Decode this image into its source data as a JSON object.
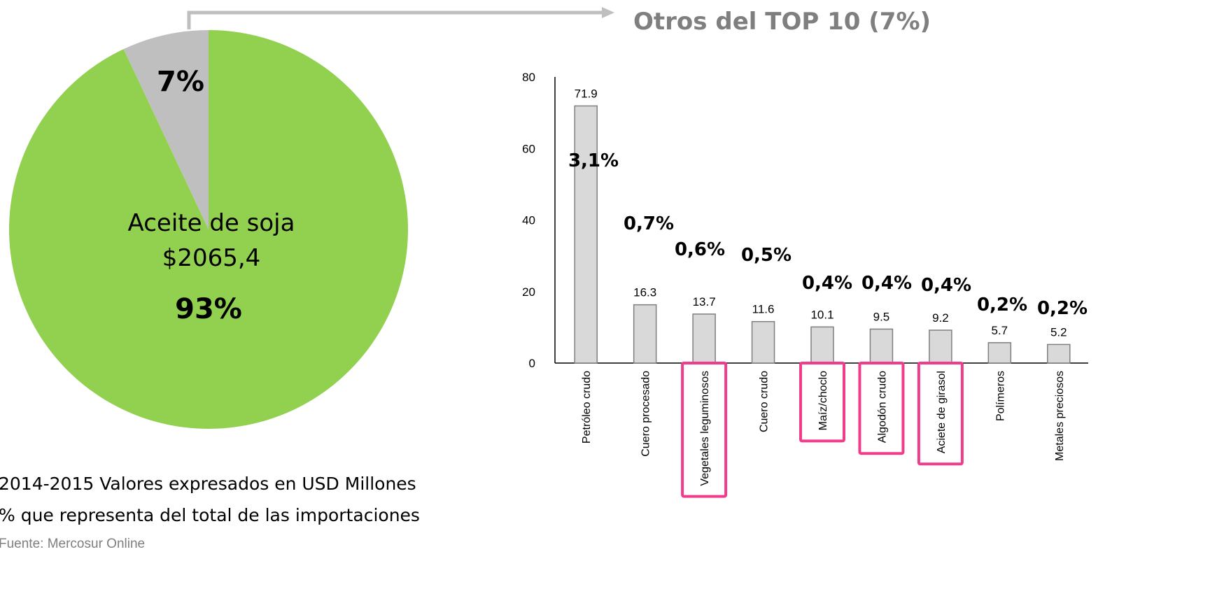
{
  "chart_data": [
    {
      "type": "pie",
      "labels": [
        "Aceite de soja",
        null
      ],
      "sublabels": [
        "$2065,4",
        null
      ],
      "values": [
        93,
        7
      ],
      "value_labels": [
        "93%",
        "7%"
      ],
      "colors": [
        "#92d050",
        "#bfbfbf"
      ]
    },
    {
      "type": "bar",
      "title": "Otros del TOP 10 (7%)",
      "categories": [
        "Petróleo crudo",
        "Cuero procesado",
        "Vegetales leguminosos",
        "Cuero crudo",
        "Maíz/choclo",
        "Algodón crudo",
        "Aciete de girasol",
        "Polímeros",
        "Metales preciosos"
      ],
      "values": [
        71.9,
        16.3,
        13.7,
        11.6,
        10.1,
        9.5,
        9.2,
        5.7,
        5.2
      ],
      "share_labels": [
        "3,1%",
        "0,7%",
        "0,6%",
        "0,5%",
        "0,4%",
        "0,4%",
        "0,4%",
        "0,2%",
        "0,2%"
      ],
      "highlighted": [
        false,
        false,
        true,
        false,
        true,
        true,
        true,
        false,
        false
      ],
      "color": "#d9d9d9",
      "ylim": [
        0,
        80
      ],
      "yticks": [
        0,
        20,
        40,
        60,
        80
      ]
    }
  ],
  "notes": [
    "2014-2015 Valores expresados en USD Millones",
    "% que representa del total de las importaciones",
    "Fuente: Mercosur Online"
  ]
}
